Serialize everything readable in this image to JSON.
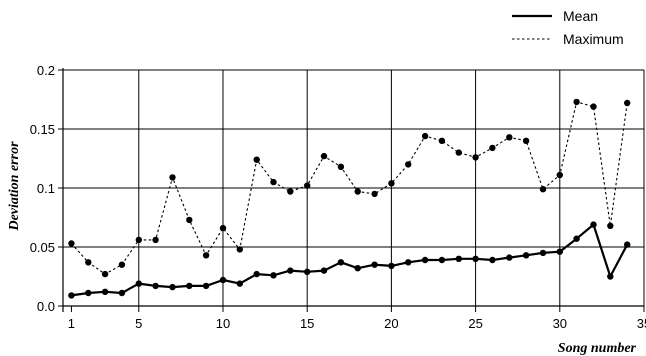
{
  "chart_data": {
    "type": "line",
    "xlabel": "Song number",
    "ylabel": "Deviation error",
    "xlim": [
      0.5,
      35
    ],
    "ylim": [
      0,
      0.2
    ],
    "x_ticks": [
      1,
      5,
      10,
      15,
      20,
      25,
      30,
      35
    ],
    "y_ticks": [
      0.0,
      0.05,
      0.1,
      0.15,
      0.2
    ],
    "x_tick_labels": [
      "1",
      "5",
      "10",
      "15",
      "20",
      "25",
      "30",
      "35"
    ],
    "y_tick_labels": [
      "0.0",
      "0.05",
      "0.1",
      "0.15",
      "0.2"
    ],
    "grid": "vertical-and-horizontal at major ticks",
    "legend_position": "top-right",
    "x": [
      1,
      2,
      3,
      4,
      5,
      6,
      7,
      8,
      9,
      10,
      11,
      12,
      13,
      14,
      15,
      16,
      17,
      18,
      19,
      20,
      21,
      22,
      23,
      24,
      25,
      26,
      27,
      28,
      29,
      30,
      31,
      32,
      33,
      34
    ],
    "series": [
      {
        "name": "Mean",
        "style": "solid",
        "color": "#000000",
        "values": [
          0.009,
          0.011,
          0.012,
          0.011,
          0.019,
          0.017,
          0.016,
          0.017,
          0.017,
          0.022,
          0.019,
          0.027,
          0.026,
          0.03,
          0.029,
          0.03,
          0.037,
          0.032,
          0.035,
          0.034,
          0.037,
          0.039,
          0.039,
          0.04,
          0.04,
          0.039,
          0.041,
          0.043,
          0.045,
          0.046,
          0.057,
          0.069,
          0.025,
          0.052
        ]
      },
      {
        "name": "Maximum",
        "style": "dotted",
        "color": "#000000",
        "values": [
          0.053,
          0.037,
          0.027,
          0.035,
          0.056,
          0.056,
          0.109,
          0.073,
          0.043,
          0.066,
          0.048,
          0.124,
          0.105,
          0.097,
          0.102,
          0.127,
          0.118,
          0.097,
          0.095,
          0.104,
          0.12,
          0.144,
          0.14,
          0.13,
          0.126,
          0.134,
          0.143,
          0.14,
          0.099,
          0.111,
          0.173,
          0.169,
          0.068,
          0.172
        ]
      }
    ]
  }
}
